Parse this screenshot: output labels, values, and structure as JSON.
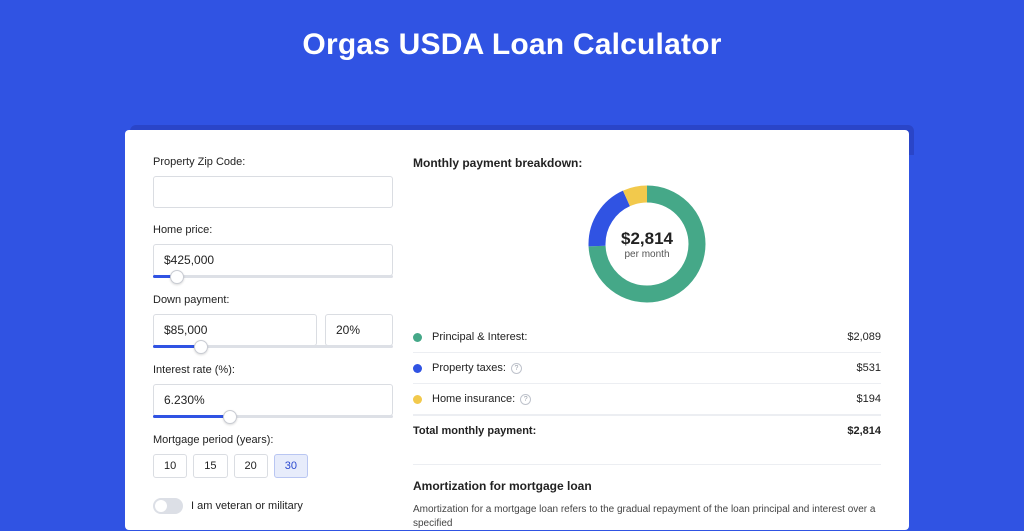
{
  "page": {
    "title": "Orgas USDA Loan Calculator",
    "background_color": "#3053e3",
    "card_background": "#ffffff"
  },
  "inputs": {
    "zip": {
      "label": "Property Zip Code:",
      "value": ""
    },
    "home_price": {
      "label": "Home price:",
      "value": "$425,000",
      "slider_position_pct": 10
    },
    "down_payment": {
      "label": "Down payment:",
      "value": "$85,000",
      "percent_value": "20%",
      "slider_position_pct": 20
    },
    "interest_rate": {
      "label": "Interest rate (%):",
      "value": "6.230%",
      "slider_position_pct": 32
    },
    "mortgage_period": {
      "label": "Mortgage period (years):",
      "options": [
        "10",
        "15",
        "20",
        "30"
      ],
      "selected_index": 3
    },
    "veteran": {
      "label": "I am veteran or military",
      "on": false
    }
  },
  "breakdown": {
    "title": "Monthly payment breakdown:",
    "chart": {
      "type": "donut",
      "center_amount": "$2,814",
      "center_sub": "per month",
      "stroke_width": 17,
      "radius": 50,
      "background_color": "#ffffff",
      "slices": [
        {
          "label": "Principal & Interest:",
          "value": "$2,089",
          "color": "#45a888",
          "fraction": 0.742,
          "has_info": false
        },
        {
          "label": "Property taxes:",
          "value": "$531",
          "color": "#3053e3",
          "fraction": 0.189,
          "has_info": true
        },
        {
          "label": "Home insurance:",
          "value": "$194",
          "color": "#f2c94c",
          "fraction": 0.069,
          "has_info": true
        }
      ],
      "total": {
        "label": "Total monthly payment:",
        "value": "$2,814"
      }
    }
  },
  "amortization": {
    "title": "Amortization for mortgage loan",
    "text": "Amortization for a mortgage loan refers to the gradual repayment of the loan principal and interest over a specified"
  }
}
